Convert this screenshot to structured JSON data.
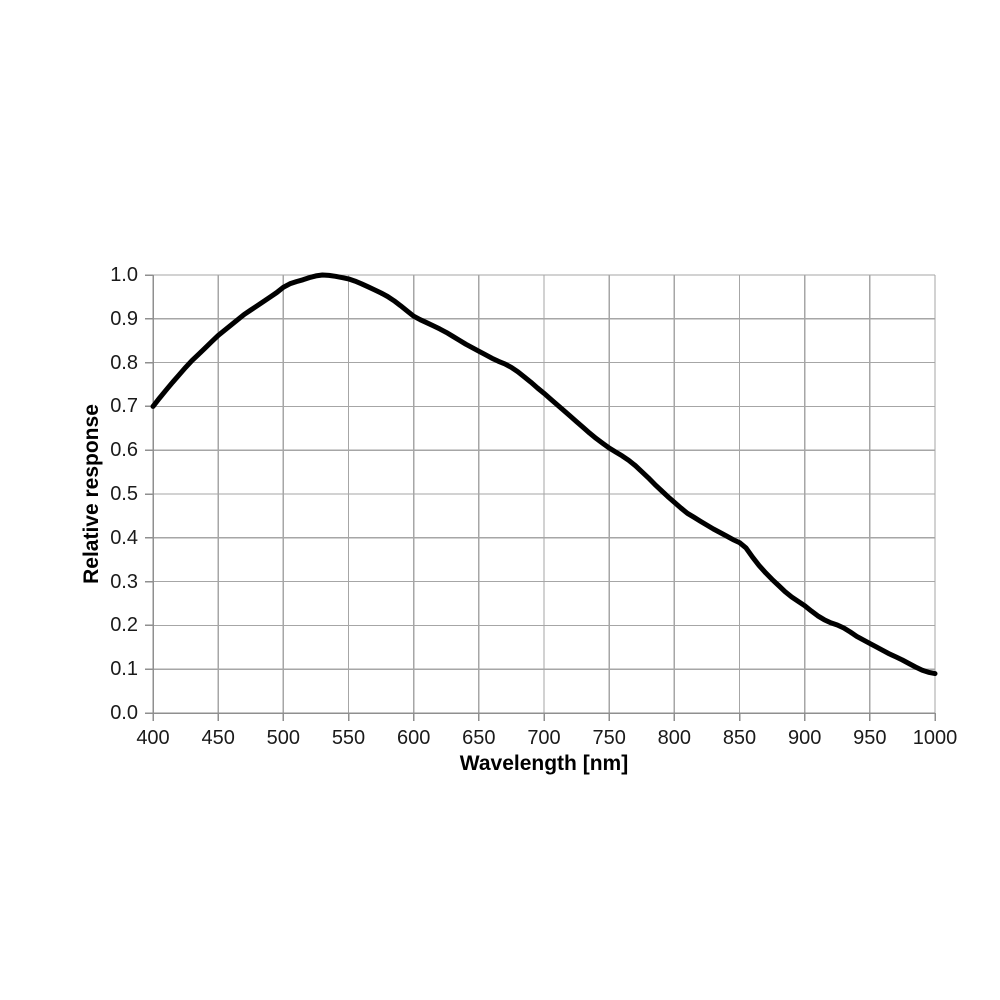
{
  "page": {
    "background": "#ffffff"
  },
  "chart_data": {
    "type": "line",
    "title": "",
    "xlabel": "Wavelength [nm]",
    "ylabel": "Relative response",
    "xlim": [
      400,
      1000
    ],
    "ylim": [
      0.0,
      1.0
    ],
    "x_ticks": [
      400,
      450,
      500,
      550,
      600,
      650,
      700,
      750,
      800,
      850,
      900,
      950,
      1000
    ],
    "y_ticks": [
      "0.0",
      "0.1",
      "0.2",
      "0.3",
      "0.4",
      "0.5",
      "0.6",
      "0.7",
      "0.8",
      "0.9",
      "1.0"
    ],
    "grid": true,
    "legend_position": "none",
    "colors": {
      "line": "#000000",
      "grid": "#a6a6a6",
      "axis": "#8f8f8f",
      "text": "#1a1a1a"
    },
    "series": [
      {
        "name": "Relative response",
        "x": [
          400,
          405,
          410,
          415,
          420,
          425,
          430,
          435,
          440,
          445,
          450,
          455,
          460,
          465,
          470,
          475,
          480,
          485,
          490,
          495,
          500,
          505,
          510,
          515,
          520,
          525,
          530,
          535,
          540,
          545,
          550,
          555,
          560,
          565,
          570,
          575,
          580,
          585,
          590,
          595,
          600,
          605,
          610,
          615,
          620,
          625,
          630,
          635,
          640,
          645,
          650,
          655,
          660,
          665,
          670,
          675,
          680,
          685,
          690,
          695,
          700,
          705,
          710,
          715,
          720,
          725,
          730,
          735,
          740,
          745,
          750,
          755,
          760,
          765,
          770,
          775,
          780,
          785,
          790,
          795,
          800,
          805,
          810,
          815,
          820,
          825,
          830,
          835,
          840,
          845,
          850,
          855,
          860,
          865,
          870,
          875,
          880,
          885,
          890,
          895,
          900,
          905,
          910,
          915,
          920,
          925,
          930,
          935,
          940,
          945,
          950,
          955,
          960,
          965,
          970,
          975,
          980,
          985,
          990,
          995,
          1000
        ],
        "y": [
          0.7,
          0.719,
          0.737,
          0.755,
          0.772,
          0.789,
          0.805,
          0.819,
          0.833,
          0.848,
          0.862,
          0.874,
          0.886,
          0.898,
          0.91,
          0.92,
          0.93,
          0.94,
          0.95,
          0.96,
          0.972,
          0.98,
          0.985,
          0.989,
          0.994,
          0.998,
          1.0,
          0.999,
          0.997,
          0.994,
          0.991,
          0.986,
          0.98,
          0.973,
          0.966,
          0.959,
          0.951,
          0.941,
          0.93,
          0.918,
          0.906,
          0.898,
          0.891,
          0.884,
          0.877,
          0.869,
          0.86,
          0.851,
          0.842,
          0.834,
          0.826,
          0.818,
          0.81,
          0.803,
          0.797,
          0.789,
          0.779,
          0.767,
          0.755,
          0.742,
          0.73,
          0.717,
          0.704,
          0.691,
          0.678,
          0.665,
          0.652,
          0.639,
          0.627,
          0.616,
          0.605,
          0.596,
          0.587,
          0.577,
          0.565,
          0.551,
          0.537,
          0.522,
          0.508,
          0.494,
          0.481,
          0.468,
          0.456,
          0.447,
          0.438,
          0.429,
          0.42,
          0.412,
          0.404,
          0.396,
          0.389,
          0.377,
          0.356,
          0.337,
          0.32,
          0.305,
          0.291,
          0.277,
          0.265,
          0.255,
          0.245,
          0.233,
          0.222,
          0.213,
          0.206,
          0.201,
          0.194,
          0.185,
          0.175,
          0.167,
          0.159,
          0.151,
          0.143,
          0.135,
          0.128,
          0.121,
          0.113,
          0.105,
          0.098,
          0.093,
          0.09
        ]
      }
    ]
  }
}
